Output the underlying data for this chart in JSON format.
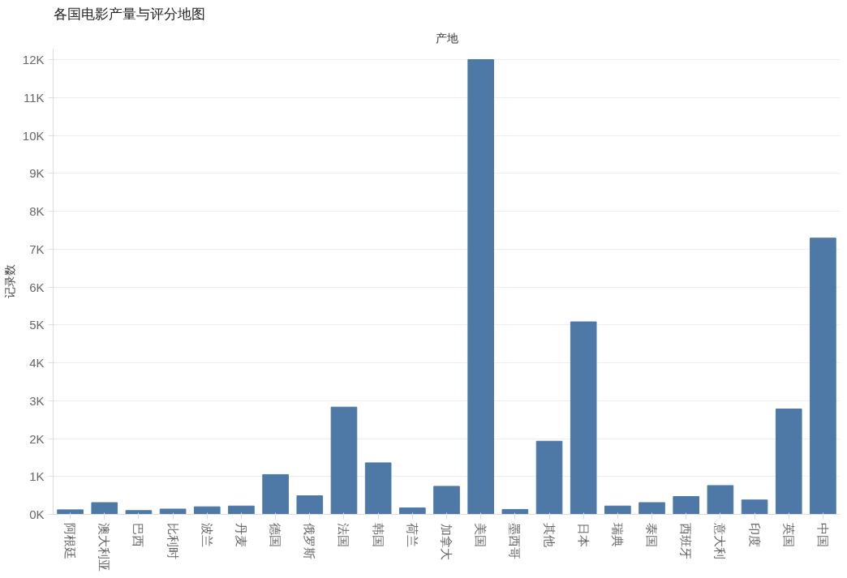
{
  "chart_data": {
    "type": "bar",
    "title": "各国电影产量与评分地图",
    "xlabel": "产地",
    "ylabel": "记录数",
    "categories": [
      "阿根廷",
      "澳大利亚",
      "巴西",
      "比利时",
      "波兰",
      "丹麦",
      "德国",
      "俄罗斯",
      "法国",
      "韩国",
      "荷兰",
      "加拿大",
      "美国",
      "墨西哥",
      "其他",
      "日本",
      "瑞典",
      "泰国",
      "西班牙",
      "意大利",
      "印度",
      "英国",
      "中国"
    ],
    "values": [
      120,
      310,
      100,
      140,
      200,
      220,
      1050,
      490,
      2830,
      1360,
      170,
      740,
      12000,
      130,
      1930,
      5080,
      220,
      310,
      470,
      760,
      380,
      2780,
      7290
    ],
    "color": "#4e79a7",
    "ylim": [
      0,
      12300
    ],
    "yticks": [
      {
        "value": 0,
        "label": "0K"
      },
      {
        "value": 1000,
        "label": "1K"
      },
      {
        "value": 2000,
        "label": "2K"
      },
      {
        "value": 3000,
        "label": "3K"
      },
      {
        "value": 4000,
        "label": "4K"
      },
      {
        "value": 5000,
        "label": "5K"
      },
      {
        "value": 6000,
        "label": "6K"
      },
      {
        "value": 7000,
        "label": "7K"
      },
      {
        "value": 8000,
        "label": "8K"
      },
      {
        "value": 9000,
        "label": "9K"
      },
      {
        "value": 10000,
        "label": "10K"
      },
      {
        "value": 11000,
        "label": "11K"
      },
      {
        "value": 12000,
        "label": "12K"
      }
    ],
    "grid": "y"
  }
}
